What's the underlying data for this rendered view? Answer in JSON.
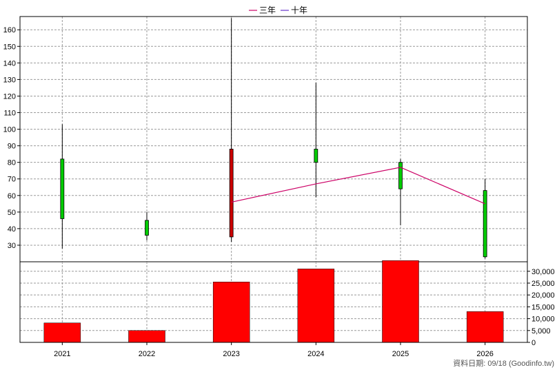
{
  "legend": {
    "items": [
      {
        "label": "三年",
        "color": "#cc0066"
      },
      {
        "label": "十年",
        "color": "#6633cc"
      }
    ]
  },
  "source_text": "資料日期: 09/18  (Goodinfo.tw)",
  "colors": {
    "candle_up": "#00cc00",
    "candle_down": "#cc0000",
    "volume_bar": "#ff0000",
    "grid": "#999999"
  },
  "chart_data": {
    "type": "bar",
    "title": "",
    "categories": [
      "2021",
      "2022",
      "2023",
      "2024",
      "2025",
      "2026"
    ],
    "price_panel": {
      "type": "candlestick",
      "ylim": [
        20,
        168
      ],
      "yticks": [
        30,
        40,
        50,
        60,
        70,
        80,
        90,
        100,
        110,
        120,
        130,
        140,
        150,
        160
      ],
      "candles": [
        {
          "x": "2021",
          "open": 46,
          "close": 82,
          "high": 103,
          "low": 28
        },
        {
          "x": "2022",
          "open": 36,
          "close": 45,
          "high": 50,
          "low": 33
        },
        {
          "x": "2023",
          "open": 88,
          "close": 35,
          "high": 167,
          "low": 32
        },
        {
          "x": "2024",
          "open": 80,
          "close": 88,
          "high": 128,
          "low": 59
        },
        {
          "x": "2025",
          "open": 64,
          "close": 80,
          "high": 82,
          "low": 42
        },
        {
          "x": "2026",
          "open": 23,
          "close": 63,
          "high": 70,
          "low": 22
        }
      ],
      "series": [
        {
          "name": "三年",
          "x": [
            "2023",
            "2024",
            "2025",
            "2026"
          ],
          "values": [
            56,
            67,
            77,
            55
          ]
        }
      ]
    },
    "volume_panel": {
      "type": "bar",
      "ylim": [
        0,
        34000
      ],
      "yticks": [
        0,
        5000,
        10000,
        15000,
        20000,
        25000,
        30000
      ],
      "ytick_labels": [
        "0",
        "5,000",
        "10,000",
        "15,000",
        "20,000",
        "25,000",
        "30,000"
      ],
      "values": [
        8200,
        5000,
        25500,
        31000,
        34500,
        13000
      ]
    },
    "grid": true,
    "legend_position": "top-center"
  }
}
